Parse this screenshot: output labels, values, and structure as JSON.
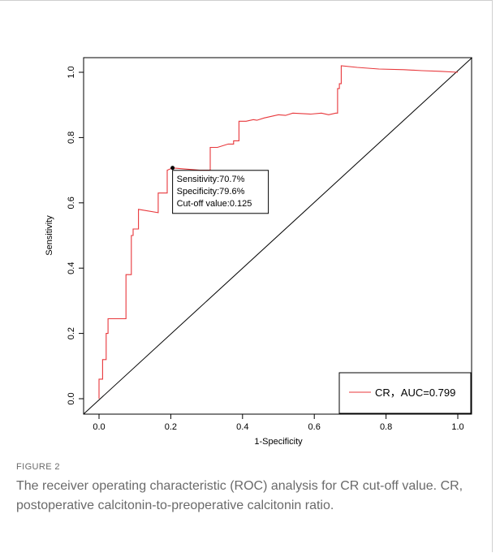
{
  "figure": {
    "label": "FIGURE 2",
    "caption": "The receiver operating characteristic (ROC) analysis for CR cut-off value. CR, postoperative calcitonin-to-preoperative calcitonin ratio."
  },
  "chart_data": {
    "type": "line",
    "title": "",
    "xlabel": "1-Specificity",
    "ylabel": "Sensitivity",
    "xlim": [
      0.0,
      1.0
    ],
    "ylim": [
      0.0,
      1.0
    ],
    "x_ticks": [
      "0.0",
      "0.2",
      "0.4",
      "0.6",
      "0.8",
      "1.0"
    ],
    "y_ticks": [
      "0.0",
      "0.2",
      "0.4",
      "0.6",
      "0.8",
      "1.0"
    ],
    "grid": false,
    "legend_position": "bottom-right",
    "series": [
      {
        "name": "CR，AUC=0.799",
        "color": "#e8373b",
        "x": [
          0.0,
          0.0,
          0.01,
          0.01,
          0.02,
          0.02,
          0.025,
          0.025,
          0.075,
          0.075,
          0.09,
          0.09,
          0.095,
          0.095,
          0.11,
          0.11,
          0.165,
          0.165,
          0.19,
          0.19,
          0.205,
          0.28,
          0.31,
          0.31,
          0.33,
          0.36,
          0.375,
          0.375,
          0.39,
          0.39,
          0.41,
          0.43,
          0.44,
          0.46,
          0.48,
          0.5,
          0.52,
          0.54,
          0.59,
          0.62,
          0.64,
          0.66,
          0.665,
          0.665,
          0.67,
          0.67,
          0.675,
          0.675,
          0.72,
          0.78,
          0.85,
          0.9,
          0.95,
          1.0
        ],
        "y": [
          0.0,
          0.06,
          0.06,
          0.12,
          0.12,
          0.2,
          0.2,
          0.245,
          0.245,
          0.38,
          0.38,
          0.5,
          0.5,
          0.52,
          0.52,
          0.58,
          0.57,
          0.63,
          0.63,
          0.7,
          0.707,
          0.7,
          0.7,
          0.77,
          0.77,
          0.78,
          0.78,
          0.79,
          0.79,
          0.85,
          0.85,
          0.855,
          0.853,
          0.86,
          0.865,
          0.87,
          0.868,
          0.875,
          0.872,
          0.875,
          0.87,
          0.875,
          0.875,
          0.95,
          0.95,
          0.965,
          0.965,
          1.02,
          1.015,
          1.01,
          1.008,
          1.005,
          1.003,
          1.0
        ]
      }
    ],
    "reference_line": {
      "x": [
        0.0,
        1.0
      ],
      "y": [
        0.0,
        1.0
      ],
      "color": "#000000"
    },
    "annotation": {
      "point": {
        "x": 0.205,
        "y": 0.707
      },
      "lines": [
        "Sensitivity:70.7%",
        "Specificity:79.6%",
        "Cut-off value:0.125"
      ]
    }
  }
}
